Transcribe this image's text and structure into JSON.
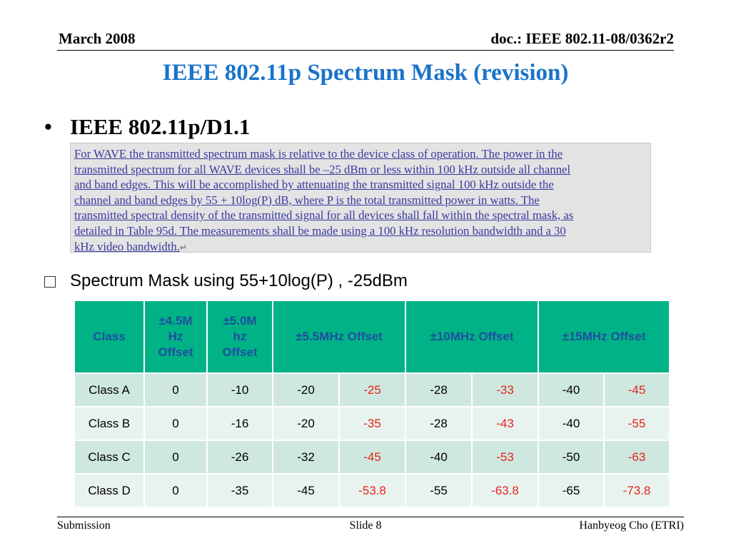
{
  "header": {
    "date": "March 2008",
    "doc_id": "doc.: IEEE 802.11-08/0362r2"
  },
  "title": "IEEE 802.11p Spectrum Mask (revision)",
  "bullet": {
    "marker": "•",
    "text": "IEEE 802.11p/D1.1"
  },
  "quote": {
    "lines": [
      "For WAVE the transmitted spectrum mask is relative to the device class of operation. The power in the",
      "transmitted spectrum for all WAVE devices shall be –25 dBm or less within 100 kHz outside all channel",
      "and band edges. This will be accomplished by attenuating the transmitted signal 100 kHz outside the",
      "channel and band edges by 55 + 10log(P) dB, where P is the total transmitted power in watts. The",
      "transmitted spectral density of the transmitted signal for all devices shall fall within the spectral mask, as",
      "detailed in Table 95d. The measurements shall be made using a 100 kHz resolution bandwidth and a 30",
      "kHz video bandwidth."
    ],
    "return_mark": "↵"
  },
  "sub_bullet": {
    "text": "Spectrum Mask using 55+10log(P) , -25dBm"
  },
  "table": {
    "headers": [
      "Class",
      "±4.5M Hz Offset",
      "±5.0M hz Offset",
      "±5.5MHz Offset",
      "±10MHz Offset",
      "±15MHz Offset"
    ],
    "header_lines": [
      [
        "Class"
      ],
      [
        "±4.5M",
        "Hz",
        "Offset"
      ],
      [
        "±5.0M",
        "hz",
        "Offset"
      ],
      [
        "±5.5MHz Offset"
      ],
      [
        "±10MHz Offset"
      ],
      [
        "±15MHz Offset"
      ]
    ],
    "rows": [
      [
        "Class A",
        "0",
        "-10",
        "-20",
        "-25",
        "-28",
        "-33",
        "-40",
        "-45"
      ],
      [
        "Class B",
        "0",
        "-16",
        "-20",
        "-35",
        "-28",
        "-43",
        "-40",
        "-55"
      ],
      [
        "Class C",
        "0",
        "-26",
        "-32",
        "-45",
        "-40",
        "-53",
        "-50",
        "-63"
      ],
      [
        "Class D",
        "0",
        "-35",
        "-45",
        "-53.8",
        "-55",
        "-63.8",
        "-65",
        "-73.8"
      ]
    ],
    "colors": {
      "header_bg": "#00b386",
      "header_text": "#1f4ea0",
      "row_odd": "#cfe8df",
      "row_even": "#e8f3ef",
      "highlight_text": "#e3241b"
    }
  },
  "footer": {
    "left": "Submission",
    "center": "Slide 8",
    "right": "Hanbyeog Cho (ETRI)"
  }
}
